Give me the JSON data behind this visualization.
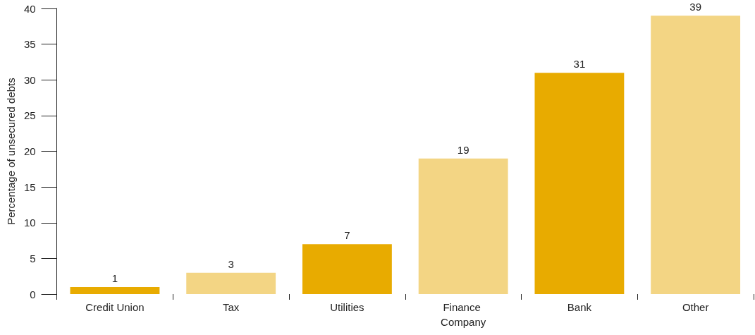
{
  "chart_data": {
    "type": "bar",
    "ylabel": "Percentage of unsecured debts",
    "categories": [
      "Credit Union",
      "Tax",
      "Utilities",
      "Finance Company",
      "Bank",
      "Other"
    ],
    "values": [
      1,
      3,
      7,
      19,
      31,
      39
    ],
    "colors": [
      "#e8ab00",
      "#f3d584",
      "#e8ab00",
      "#f3d584",
      "#e8ab00",
      "#f3d584"
    ],
    "ylim": [
      0,
      40
    ],
    "yticks": [
      0,
      5,
      10,
      15,
      20,
      25,
      30,
      35,
      40
    ],
    "grid": false,
    "data_labels": true
  }
}
